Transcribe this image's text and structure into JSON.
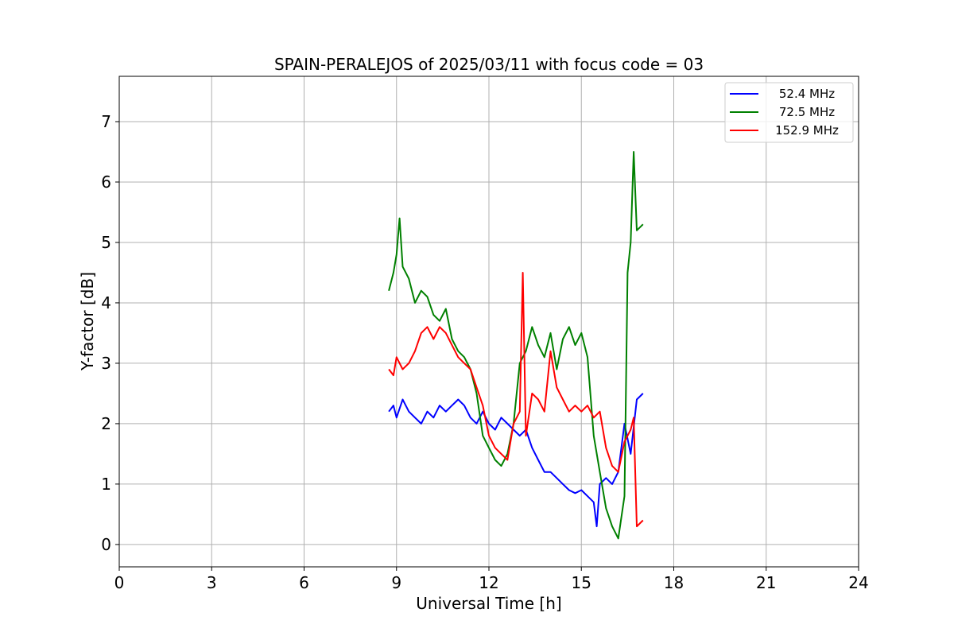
{
  "chart_data": {
    "type": "line",
    "title": "SPAIN-PERALEJOS of 2025/03/11 with focus code = 03",
    "xlabel": "Universal Time [h]",
    "ylabel": "Y-factor [dB]",
    "xlim": [
      0,
      24
    ],
    "ylim": [
      -0.37,
      7.75
    ],
    "xticks": [
      "0",
      "3",
      "6",
      "9",
      "12",
      "15",
      "18",
      "21",
      "24"
    ],
    "yticks": [
      "0",
      "1",
      "2",
      "3",
      "4",
      "5",
      "6",
      "7"
    ],
    "grid": true,
    "legend_position": "top-right",
    "series": [
      {
        "name": "52.4 MHz",
        "color": "#0000ff",
        "x": [
          8.75,
          8.9,
          9.0,
          9.2,
          9.4,
          9.6,
          9.8,
          10.0,
          10.2,
          10.4,
          10.6,
          10.8,
          11.0,
          11.2,
          11.4,
          11.6,
          11.8,
          12.0,
          12.2,
          12.4,
          12.6,
          12.8,
          13.0,
          13.2,
          13.4,
          13.6,
          13.8,
          14.0,
          14.2,
          14.4,
          14.6,
          14.8,
          15.0,
          15.2,
          15.4,
          15.5,
          15.6,
          15.8,
          16.0,
          16.2,
          16.4,
          16.6,
          16.8,
          17.0
        ],
        "y": [
          2.2,
          2.3,
          2.1,
          2.4,
          2.2,
          2.1,
          2.0,
          2.2,
          2.1,
          2.3,
          2.2,
          2.3,
          2.4,
          2.3,
          2.1,
          2.0,
          2.2,
          2.0,
          1.9,
          2.1,
          2.0,
          1.9,
          1.8,
          1.9,
          1.6,
          1.4,
          1.2,
          1.2,
          1.1,
          1.0,
          0.9,
          0.85,
          0.9,
          0.8,
          0.7,
          0.3,
          1.0,
          1.1,
          1.0,
          1.2,
          2.0,
          1.5,
          2.4,
          2.5
        ]
      },
      {
        "name": "72.5 MHz",
        "color": "#008000",
        "x": [
          8.75,
          8.9,
          9.0,
          9.1,
          9.2,
          9.4,
          9.6,
          9.8,
          10.0,
          10.2,
          10.4,
          10.6,
          10.8,
          11.0,
          11.2,
          11.4,
          11.6,
          11.8,
          12.0,
          12.2,
          12.4,
          12.6,
          12.8,
          13.0,
          13.2,
          13.4,
          13.6,
          13.8,
          14.0,
          14.2,
          14.4,
          14.6,
          14.8,
          15.0,
          15.2,
          15.4,
          15.6,
          15.8,
          16.0,
          16.2,
          16.4,
          16.5,
          16.6,
          16.7,
          16.8,
          17.0
        ],
        "y": [
          4.2,
          4.5,
          4.8,
          5.4,
          4.6,
          4.4,
          4.0,
          4.2,
          4.1,
          3.8,
          3.7,
          3.9,
          3.4,
          3.2,
          3.1,
          2.9,
          2.5,
          1.8,
          1.6,
          1.4,
          1.3,
          1.5,
          2.0,
          3.0,
          3.2,
          3.6,
          3.3,
          3.1,
          3.5,
          2.9,
          3.4,
          3.6,
          3.3,
          3.5,
          3.1,
          1.8,
          1.2,
          0.6,
          0.3,
          0.1,
          0.8,
          4.5,
          5.0,
          6.5,
          5.2,
          5.3
        ]
      },
      {
        "name": "152.9 MHz",
        "color": "#ff0000",
        "x": [
          8.75,
          8.9,
          9.0,
          9.2,
          9.4,
          9.6,
          9.8,
          10.0,
          10.2,
          10.4,
          10.6,
          10.8,
          11.0,
          11.2,
          11.4,
          11.6,
          11.8,
          12.0,
          12.2,
          12.4,
          12.6,
          12.8,
          13.0,
          13.1,
          13.2,
          13.4,
          13.6,
          13.8,
          14.0,
          14.2,
          14.4,
          14.6,
          14.8,
          15.0,
          15.2,
          15.4,
          15.6,
          15.8,
          16.0,
          16.2,
          16.4,
          16.6,
          16.7,
          16.8,
          17.0
        ],
        "y": [
          2.9,
          2.8,
          3.1,
          2.9,
          3.0,
          3.2,
          3.5,
          3.6,
          3.4,
          3.6,
          3.5,
          3.3,
          3.1,
          3.0,
          2.9,
          2.6,
          2.3,
          1.8,
          1.6,
          1.5,
          1.4,
          2.0,
          2.2,
          4.5,
          1.8,
          2.5,
          2.4,
          2.2,
          3.2,
          2.6,
          2.4,
          2.2,
          2.3,
          2.2,
          2.3,
          2.1,
          2.2,
          1.6,
          1.3,
          1.2,
          1.7,
          1.9,
          2.1,
          0.3,
          0.4
        ]
      }
    ]
  }
}
